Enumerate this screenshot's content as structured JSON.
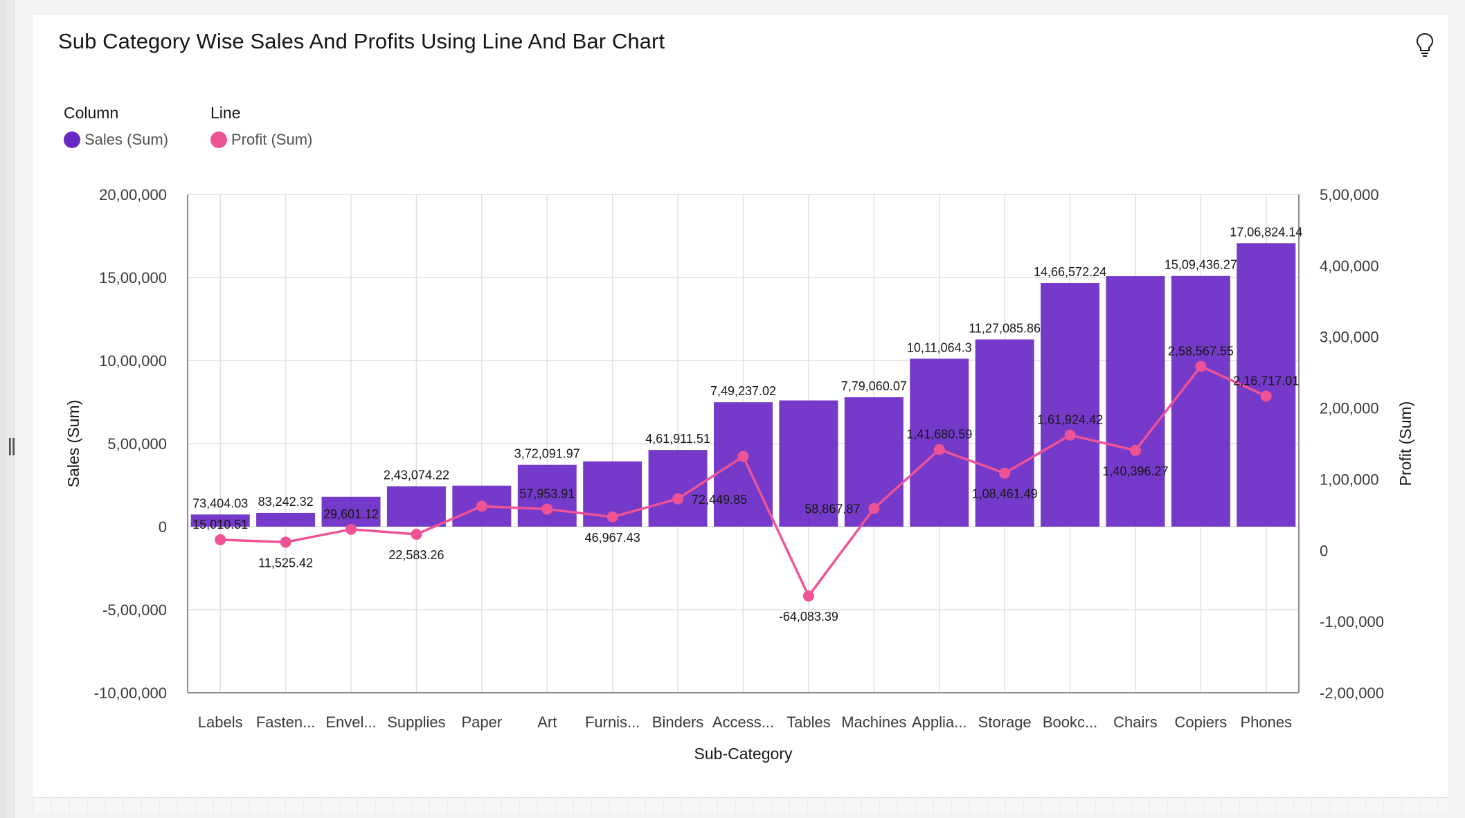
{
  "card": {
    "title": "Sub Category Wise Sales And Profits Using Line And Bar Chart",
    "insight_icon": "lightbulb-icon"
  },
  "legend": {
    "column_heading": "Column",
    "line_heading": "Line",
    "sales_label": "Sales (Sum)",
    "profit_label": "Profit (Sum)"
  },
  "colors": {
    "bar": "#6929c4",
    "line": "#ee5396",
    "grid": "#e0e0e0"
  },
  "chart_data": {
    "type": "bar",
    "combo": "bar+line",
    "xlabel": "Sub-Category",
    "ylabel_left": "Sales (Sum)",
    "ylabel_right": "Profit (Sum)",
    "ylim_left": [
      -1000000,
      2000000
    ],
    "ylim_right": [
      -200000,
      500000
    ],
    "left_ticks": [
      {
        "v": 2000000,
        "label": "20,00,000"
      },
      {
        "v": 1500000,
        "label": "15,00,000"
      },
      {
        "v": 1000000,
        "label": "10,00,000"
      },
      {
        "v": 500000,
        "label": "5,00,000"
      },
      {
        "v": 0,
        "label": "0"
      },
      {
        "v": -500000,
        "label": "-5,00,000"
      },
      {
        "v": -1000000,
        "label": "-10,00,000"
      }
    ],
    "right_ticks": [
      {
        "v": 500000,
        "label": "5,00,000"
      },
      {
        "v": 400000,
        "label": "4,00,000"
      },
      {
        "v": 300000,
        "label": "3,00,000"
      },
      {
        "v": 200000,
        "label": "2,00,000"
      },
      {
        "v": 100000,
        "label": "1,00,000"
      },
      {
        "v": 0,
        "label": "0"
      },
      {
        "v": -100000,
        "label": "-1,00,000"
      },
      {
        "v": -200000,
        "label": "-2,00,000"
      }
    ],
    "categories": [
      "Labels",
      "Fasten...",
      "Envel...",
      "Supplies",
      "Paper",
      "Art",
      "Furnis...",
      "Binders",
      "Access...",
      "Tables",
      "Machines",
      "Applia...",
      "Storage",
      "Bookc...",
      "Chairs",
      "Copiers",
      "Phones"
    ],
    "series": [
      {
        "name": "Sales (Sum)",
        "type": "bar",
        "axis": "left",
        "values": [
          73404.03,
          83242.32,
          180000,
          243074.22,
          247000,
          372091.97,
          393000,
          461911.51,
          749237.02,
          760000,
          779060.07,
          1011064.3,
          1127085.86,
          1466572.24,
          1508000,
          1509436.27,
          1706824.14
        ],
        "labels": [
          "73,404.03",
          "83,242.32",
          "",
          "2,43,074.22",
          "",
          "3,72,091.97",
          "",
          "4,61,911.51",
          "7,49,237.02",
          "",
          "7,79,060.07",
          "10,11,064.3",
          "11,27,085.86",
          "14,66,572.24",
          "",
          "15,09,436.27",
          "17,06,824.14"
        ]
      },
      {
        "name": "Profit (Sum)",
        "type": "line",
        "axis": "right",
        "values": [
          15010.51,
          11525.42,
          29601.12,
          22583.26,
          62000,
          57953.91,
          46967.43,
          72449.85,
          132000,
          -64083.39,
          58867.87,
          141680.59,
          108461.49,
          161924.42,
          140396.27,
          258567.55,
          216717.01
        ],
        "labels": [
          "15,010.51",
          "11,525.42",
          "29,601.12",
          "22,583.26",
          "",
          "57,953.91",
          "46,967.43",
          "72,449.85",
          "",
          "-64,083.39",
          "58,867.87",
          "1,41,680.59",
          "1,08,461.49",
          "1,61,924.42",
          "1,40,396.27",
          "2,58,567.55",
          "2,16,717.01"
        ]
      }
    ]
  }
}
